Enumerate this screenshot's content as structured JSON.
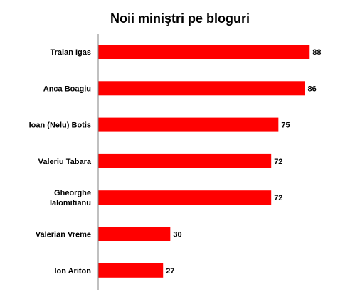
{
  "chart_data": {
    "type": "bar",
    "orientation": "horizontal",
    "title": "Noii miniştri pe bloguri",
    "categories": [
      "Traian Igas",
      "Anca Boagiu",
      "Ioan (Nelu) Botis",
      "Valeriu Tabara",
      "Gheorghe Ialomitianu",
      "Valerian Vreme",
      "Ion Ariton"
    ],
    "category_lines": [
      [
        "Traian Igas"
      ],
      [
        "Anca Boagiu"
      ],
      [
        "Ioan (Nelu) Botis"
      ],
      [
        "Valeriu Tabara"
      ],
      [
        "Gheorghe",
        "Ialomitianu"
      ],
      [
        "Valerian Vreme"
      ],
      [
        "Ion Ariton"
      ]
    ],
    "values": [
      88,
      86,
      75,
      72,
      72,
      30,
      27
    ],
    "xlim": [
      0,
      90
    ],
    "bar_color": "#ff0000",
    "grid": false,
    "legend": "none",
    "data_labels": true
  }
}
